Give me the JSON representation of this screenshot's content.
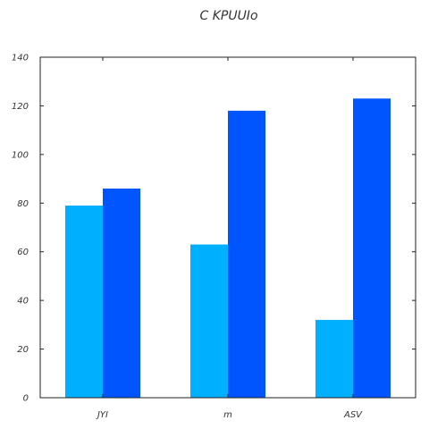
{
  "chart_data": {
    "type": "bar",
    "title": "C KPUUIo",
    "categories": [
      "JYI",
      "m",
      "ASV"
    ],
    "series": [
      {
        "values": [
          79,
          63,
          32
        ],
        "color": "#00b0ff"
      },
      {
        "values": [
          86,
          118,
          123
        ],
        "color": "#0055ff"
      }
    ],
    "ylim": [
      0,
      140
    ],
    "yticks": [
      0,
      20,
      40,
      60,
      80,
      100,
      120,
      140
    ],
    "xlabel": "",
    "ylabel": "",
    "grid": false,
    "legend": "none"
  }
}
